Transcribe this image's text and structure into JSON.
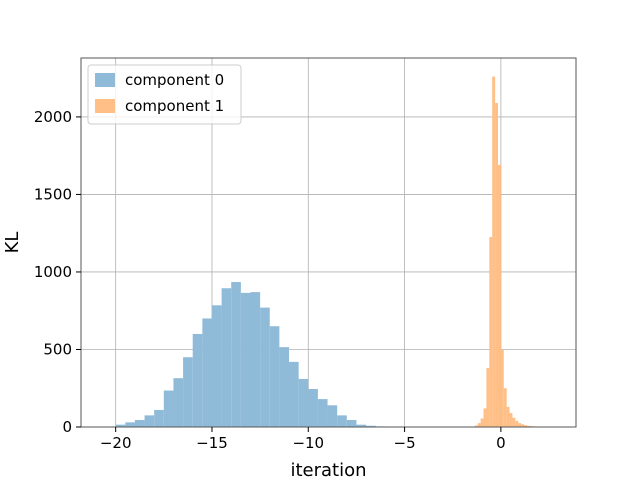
{
  "chart_data": {
    "type": "bar",
    "xlabel": "iteration",
    "ylabel": "KL",
    "xlim": [
      -21.8,
      3.9
    ],
    "ylim": [
      0,
      2380
    ],
    "xticks": [
      -20,
      -15,
      -10,
      -5,
      0
    ],
    "yticks": [
      0,
      500,
      1000,
      1500,
      2000
    ],
    "grid": true,
    "legend_position": "upper left",
    "series": [
      {
        "name": "component 0",
        "color": "#8fbad8",
        "bin_width": 0.5,
        "bins": [
          {
            "x": -20.0,
            "y": 15
          },
          {
            "x": -19.5,
            "y": 30
          },
          {
            "x": -19.0,
            "y": 45
          },
          {
            "x": -18.5,
            "y": 75
          },
          {
            "x": -18.0,
            "y": 110
          },
          {
            "x": -17.5,
            "y": 235
          },
          {
            "x": -17.0,
            "y": 315
          },
          {
            "x": -16.5,
            "y": 450
          },
          {
            "x": -16.0,
            "y": 600
          },
          {
            "x": -15.5,
            "y": 700
          },
          {
            "x": -15.0,
            "y": 785
          },
          {
            "x": -14.5,
            "y": 895
          },
          {
            "x": -14.0,
            "y": 935
          },
          {
            "x": -13.5,
            "y": 865
          },
          {
            "x": -13.0,
            "y": 870
          },
          {
            "x": -12.5,
            "y": 770
          },
          {
            "x": -12.0,
            "y": 650
          },
          {
            "x": -11.5,
            "y": 515
          },
          {
            "x": -11.0,
            "y": 420
          },
          {
            "x": -10.5,
            "y": 310
          },
          {
            "x": -10.0,
            "y": 245
          },
          {
            "x": -9.5,
            "y": 180
          },
          {
            "x": -9.0,
            "y": 140
          },
          {
            "x": -8.5,
            "y": 75
          },
          {
            "x": -8.0,
            "y": 45
          },
          {
            "x": -7.5,
            "y": 15
          },
          {
            "x": -7.0,
            "y": 8
          },
          {
            "x": -6.5,
            "y": 4
          }
        ]
      },
      {
        "name": "component 1",
        "color": "#ffbf86",
        "bin_width": 0.15,
        "bins": [
          {
            "x": -1.35,
            "y": 10
          },
          {
            "x": -1.2,
            "y": 25
          },
          {
            "x": -1.05,
            "y": 55
          },
          {
            "x": -0.9,
            "y": 120
          },
          {
            "x": -0.75,
            "y": 380
          },
          {
            "x": -0.6,
            "y": 1225
          },
          {
            "x": -0.45,
            "y": 2260
          },
          {
            "x": -0.3,
            "y": 2090
          },
          {
            "x": -0.15,
            "y": 1690
          },
          {
            "x": 0.0,
            "y": 500
          },
          {
            "x": 0.15,
            "y": 250
          },
          {
            "x": 0.3,
            "y": 130
          },
          {
            "x": 0.45,
            "y": 90
          },
          {
            "x": 0.6,
            "y": 60
          },
          {
            "x": 0.75,
            "y": 40
          },
          {
            "x": 0.9,
            "y": 25
          },
          {
            "x": 1.05,
            "y": 18
          },
          {
            "x": 1.2,
            "y": 12
          },
          {
            "x": 1.35,
            "y": 8
          },
          {
            "x": 1.5,
            "y": 6
          },
          {
            "x": 1.65,
            "y": 4
          },
          {
            "x": 1.8,
            "y": 3
          },
          {
            "x": 1.95,
            "y": 2
          },
          {
            "x": 2.1,
            "y": 2
          }
        ]
      }
    ]
  }
}
